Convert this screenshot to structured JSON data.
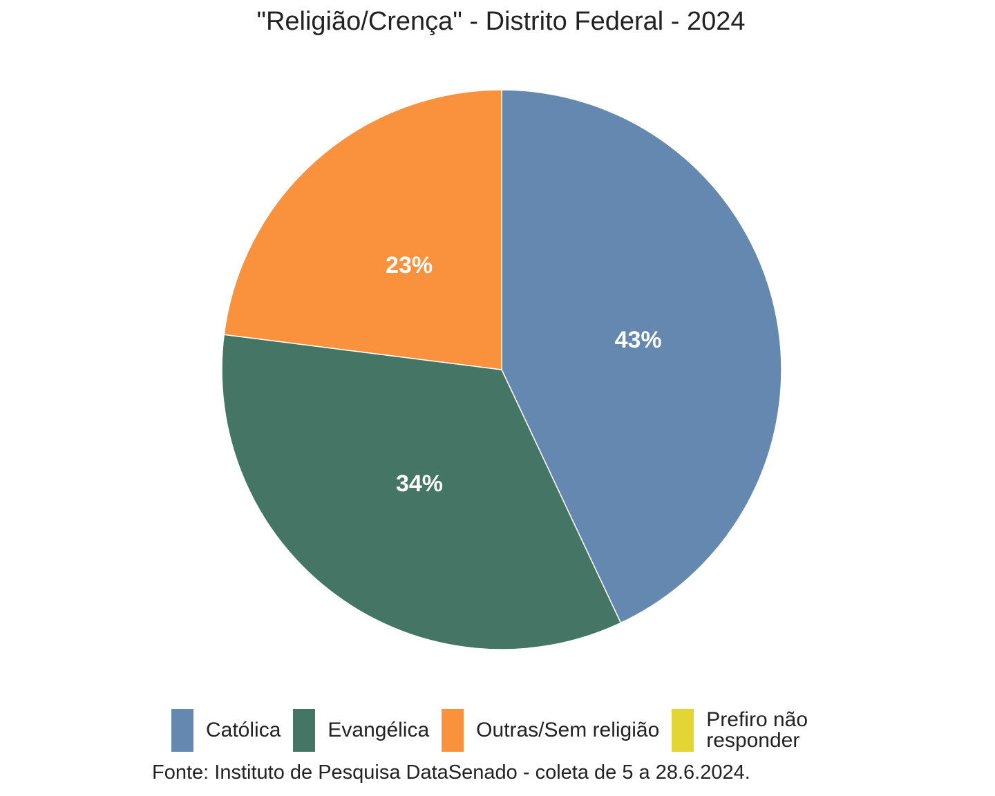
{
  "chart_data": {
    "type": "pie",
    "title": "\"Religião/Crença\" - Distrito Federal - 2024",
    "categories": [
      "Católica",
      "Evangélica",
      "Outras/Sem religião",
      "Prefiro não responder"
    ],
    "values": [
      43,
      34,
      23,
      0
    ],
    "labels": [
      "43%",
      "34%",
      "23%",
      ""
    ],
    "colors": [
      "#6588B0",
      "#457564",
      "#F9913D",
      "#E3D534"
    ],
    "legend_position": "bottom",
    "source": "Fonte: Instituto de Pesquisa DataSenado - coleta de 5 a 28.6.2024."
  }
}
